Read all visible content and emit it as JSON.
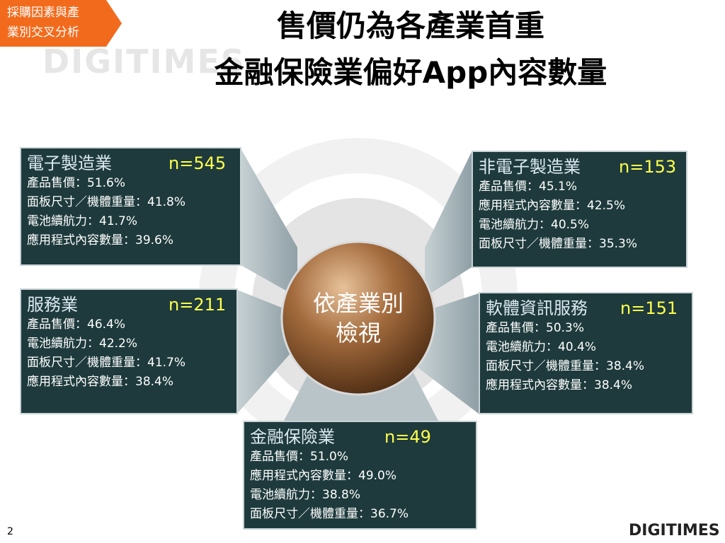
{
  "tag": {
    "lines": [
      "採購因素與產",
      "業別交叉分析"
    ]
  },
  "title": {
    "line1": "售價仍為各產業首重",
    "line2": "金融保險業偏好App內容數量"
  },
  "watermark": "DIGITIMES",
  "center": {
    "lines": [
      "依產業別",
      "檢視"
    ]
  },
  "boxes": [
    {
      "industry": "電子製造業",
      "n": "n=545",
      "items": [
        "產品售價：51.6%",
        "面板尺寸／機體重量：41.8%",
        "電池續航力：41.7%",
        "應用程式內容數量：39.6%"
      ]
    },
    {
      "industry": "非電子製造業",
      "n": "n=153",
      "items": [
        "產品售價：45.1%",
        "應用程式內容數量：42.5%",
        "電池續航力：40.5%",
        "面板尺寸／機體重量：35.3%"
      ]
    },
    {
      "industry": "服務業",
      "n": "n=211",
      "items": [
        "產品售價：46.4%",
        "電池續航力：42.2%",
        "面板尺寸／機體重量：41.7%",
        "應用程式內容數量：38.4%"
      ]
    },
    {
      "industry": "軟體資訊服務",
      "n": "n=151",
      "items": [
        "產品售價：50.3%",
        "電池續航力：40.4%",
        "面板尺寸／機體重量：38.4%",
        "應用程式內容數量：38.4%"
      ]
    },
    {
      "industry": "金融保險業",
      "n": "n=49",
      "items": [
        "產品售價：51.0%",
        "應用程式內容數量：49.0%",
        "電池續航力：38.8%",
        "面板尺寸／機體重量：36.7%"
      ]
    }
  ],
  "page_number": "2",
  "logo": "DIGITIMES"
}
